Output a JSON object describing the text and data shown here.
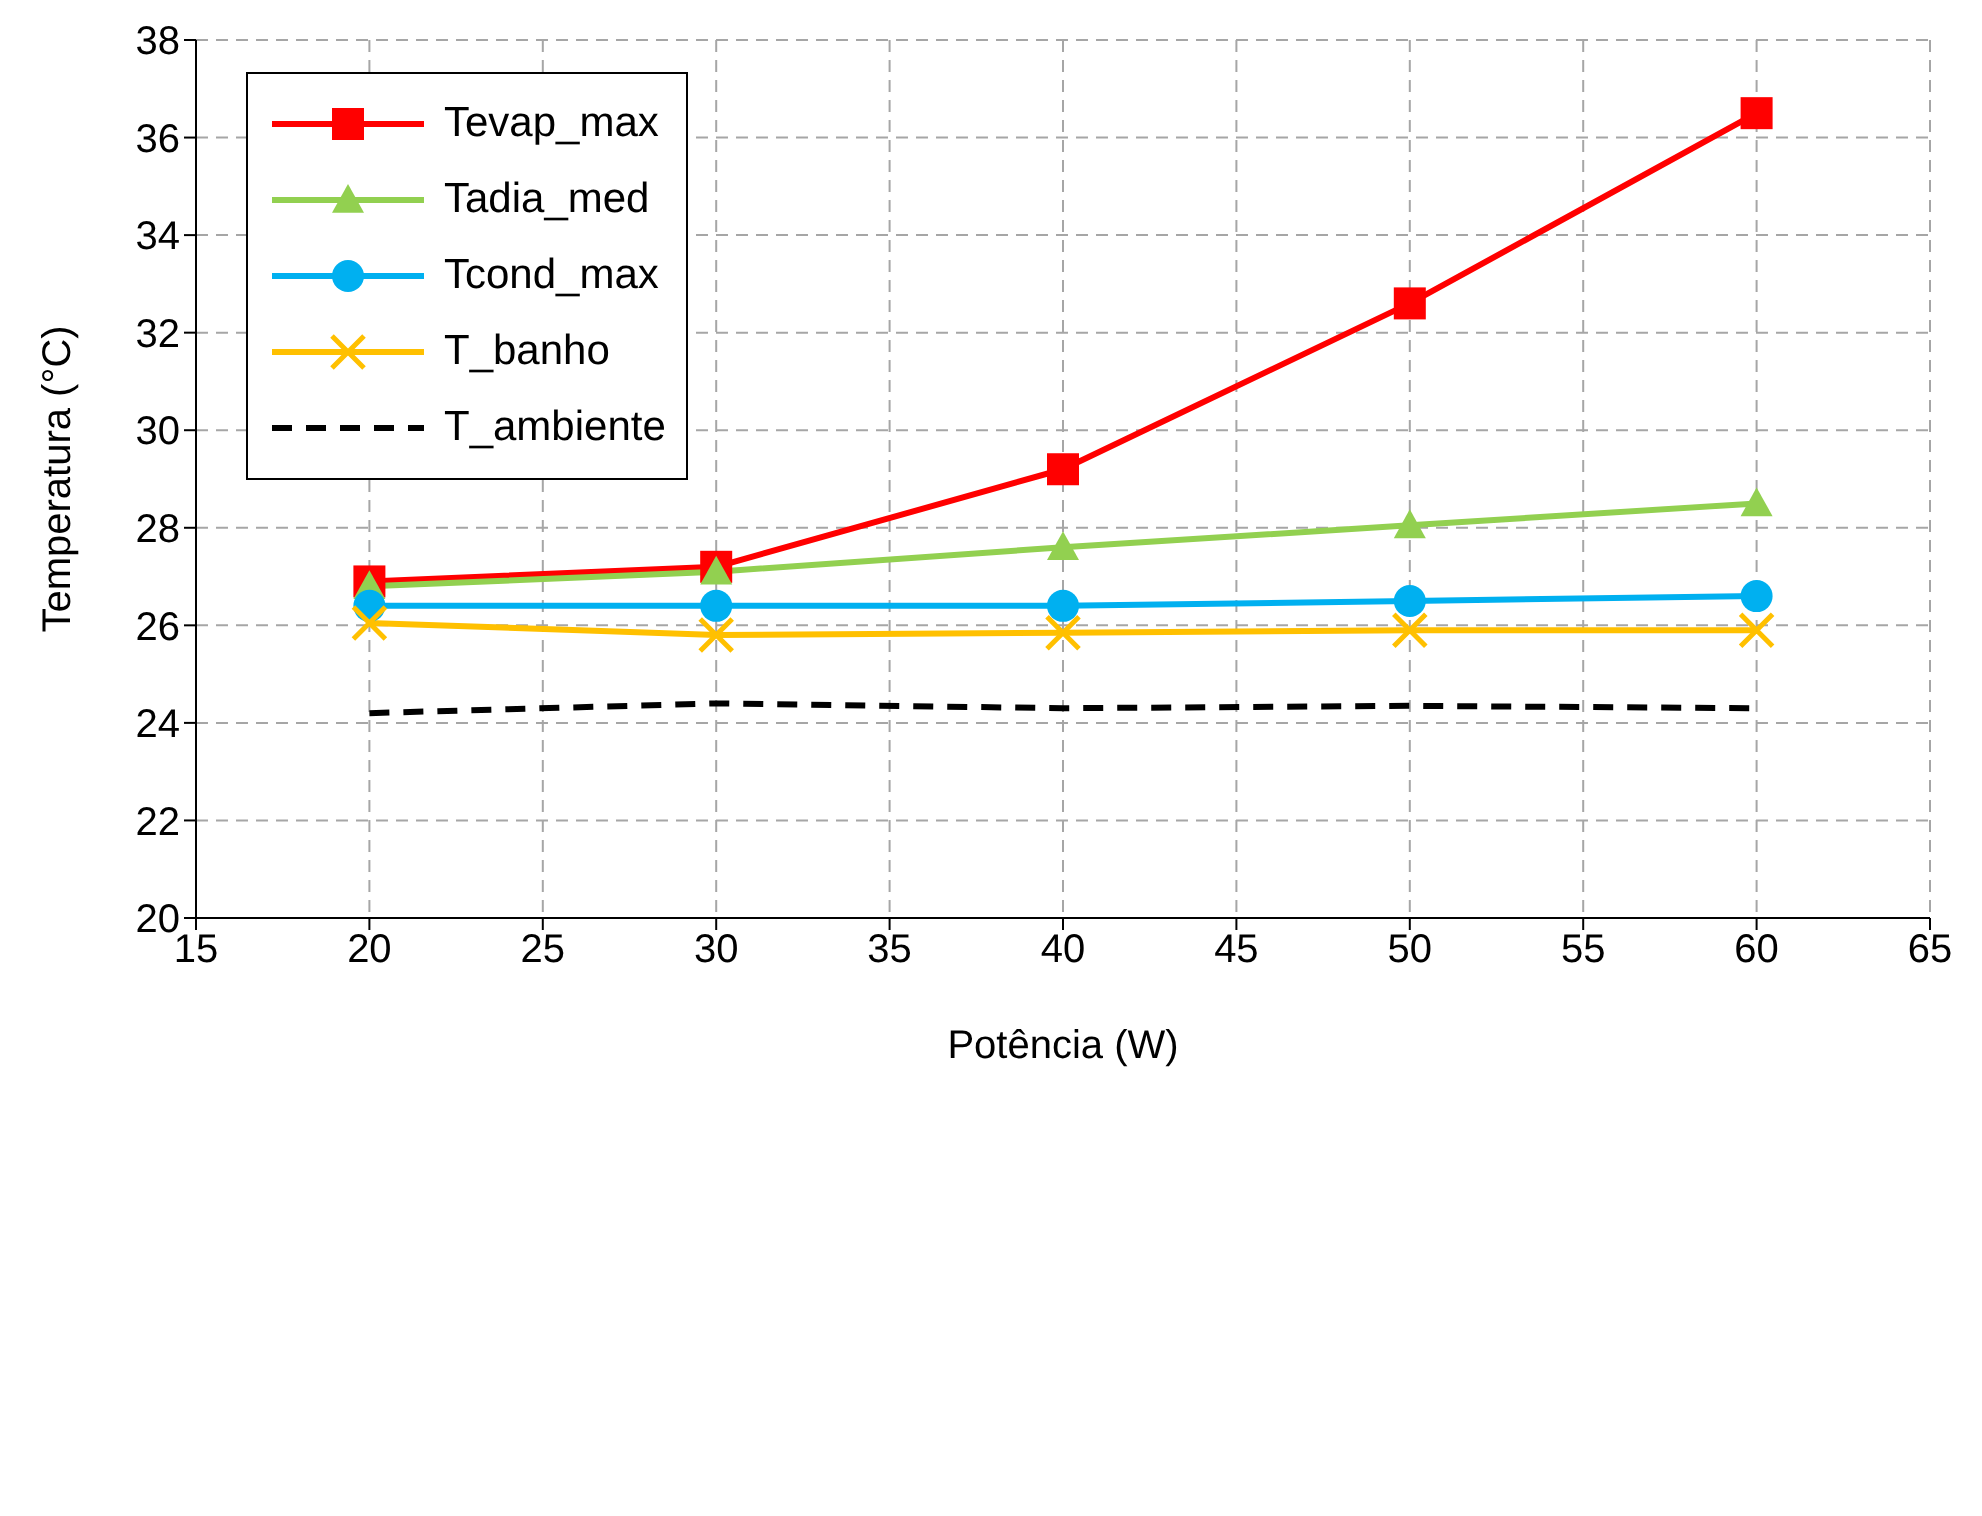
{
  "chart_data": {
    "type": "line",
    "xlabel": "Potência (W)",
    "ylabel": "Temperatura (°C)",
    "x": [
      20,
      30,
      40,
      50,
      60
    ],
    "series": [
      {
        "name": "Tevap_max",
        "color": "#ff0000",
        "marker": "square",
        "values": [
          26.9,
          27.2,
          29.2,
          32.6,
          36.5
        ]
      },
      {
        "name": "Tadia_med",
        "color": "#92d050",
        "marker": "triangle",
        "values": [
          26.8,
          27.1,
          27.6,
          28.05,
          28.5
        ]
      },
      {
        "name": "Tcond_max",
        "color": "#00b0f0",
        "marker": "circle",
        "values": [
          26.4,
          26.4,
          26.4,
          26.5,
          26.6
        ]
      },
      {
        "name": "T_banho",
        "color": "#ffc000",
        "marker": "cross",
        "values": [
          26.05,
          25.8,
          25.85,
          25.9,
          25.9
        ]
      },
      {
        "name": "T_ambiente",
        "color": "#000000",
        "marker": "none",
        "line_style": "dashed",
        "values": [
          24.2,
          24.4,
          24.3,
          24.35,
          24.3
        ]
      }
    ],
    "xlim": [
      15,
      65
    ],
    "xticks": [
      15,
      20,
      25,
      30,
      35,
      40,
      45,
      50,
      55,
      60,
      65
    ],
    "ylim": [
      20,
      38
    ],
    "yticks": [
      20,
      22,
      24,
      26,
      28,
      30,
      32,
      34,
      36,
      38
    ],
    "grid": true,
    "legend": "top left"
  }
}
